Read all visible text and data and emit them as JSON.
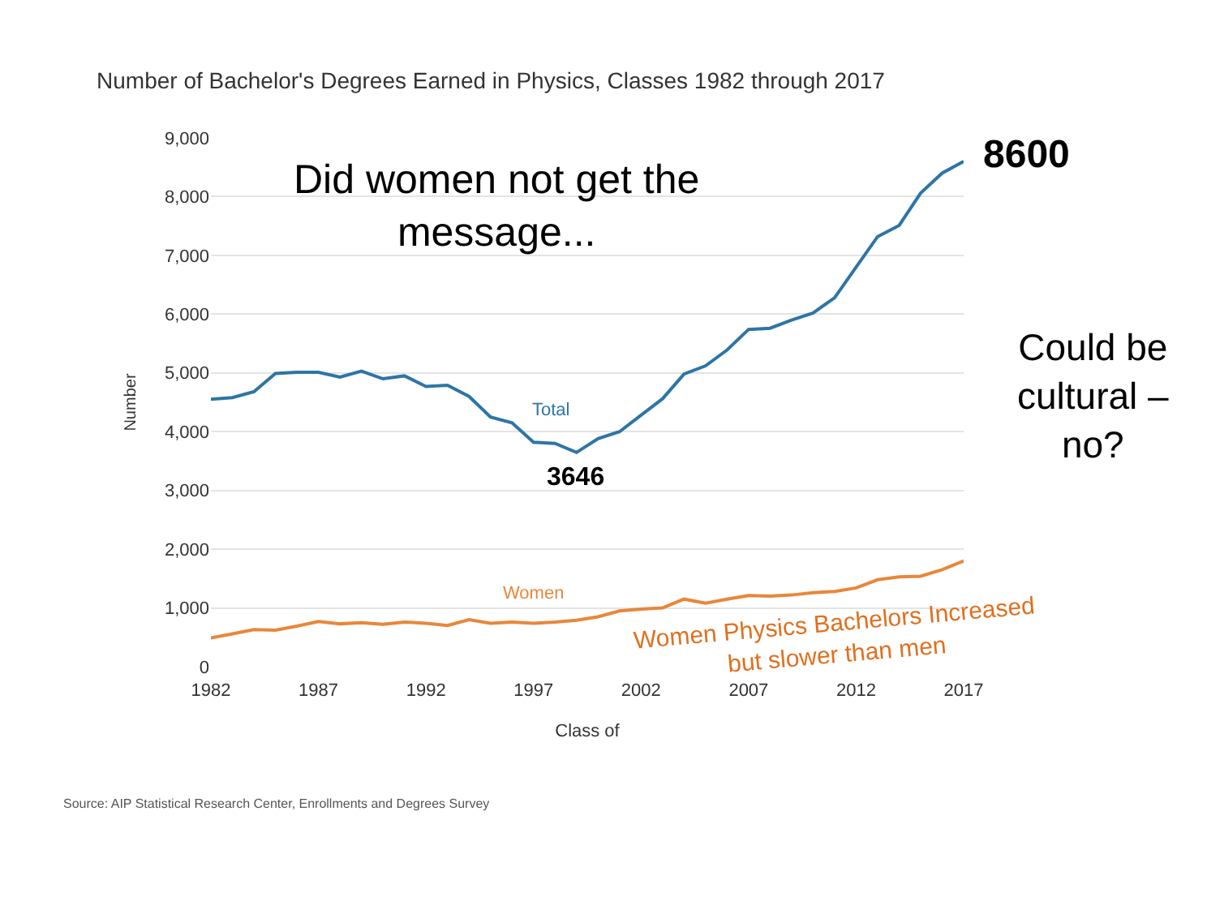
{
  "chart_data": {
    "type": "line",
    "title": "Number of Bachelor's Degrees Earned in Physics, Classes 1982 through 2017",
    "xlabel": "Class of",
    "ylabel": "Number",
    "x": [
      1982,
      1983,
      1984,
      1985,
      1986,
      1987,
      1988,
      1989,
      1990,
      1991,
      1992,
      1993,
      1994,
      1995,
      1996,
      1997,
      1998,
      1999,
      2000,
      2001,
      2002,
      2003,
      2004,
      2005,
      2006,
      2007,
      2008,
      2009,
      2010,
      2011,
      2012,
      2013,
      2014,
      2015,
      2016,
      2017
    ],
    "series": [
      {
        "name": "Total",
        "color": "#2e75a6",
        "values": [
          4550,
          4580,
          4680,
          4990,
          5010,
          5010,
          4930,
          5030,
          4900,
          4950,
          4770,
          4790,
          4600,
          4250,
          4150,
          3820,
          3800,
          3646,
          3880,
          4000,
          4280,
          4560,
          4980,
          5120,
          5390,
          5740,
          5760,
          5900,
          6020,
          6280,
          6800,
          7320,
          7510,
          8060,
          8400,
          8600
        ]
      },
      {
        "name": "Women",
        "color": "#e8873a",
        "values": [
          490,
          560,
          630,
          620,
          690,
          770,
          730,
          750,
          720,
          760,
          740,
          700,
          800,
          740,
          760,
          740,
          760,
          790,
          850,
          950,
          980,
          1000,
          1150,
          1080,
          1150,
          1210,
          1200,
          1220,
          1260,
          1280,
          1340,
          1480,
          1530,
          1540,
          1650,
          1800
        ]
      }
    ],
    "xlim": [
      1982,
      2017
    ],
    "xticks": [
      1982,
      1987,
      1992,
      1997,
      2002,
      2007,
      2012,
      2017
    ],
    "ylim": [
      0,
      9000
    ],
    "yticks": [
      {
        "value": 0,
        "label": "0"
      },
      {
        "value": 1000,
        "label": "1,000"
      },
      {
        "value": 2000,
        "label": "2,000"
      },
      {
        "value": 3000,
        "label": "3,000"
      },
      {
        "value": 4000,
        "label": "4,000"
      },
      {
        "value": 5000,
        "label": "5,000"
      },
      {
        "value": 6000,
        "label": "6,000"
      },
      {
        "value": 7000,
        "label": "7,000"
      },
      {
        "value": 8000,
        "label": "8,000"
      },
      {
        "value": 9000,
        "label": "9,000"
      }
    ],
    "grid": "y",
    "legend": false,
    "marker": "none",
    "line_style": "solid",
    "annotations": [
      "Did women not get the\nmessage...",
      "Could be\ncultural –\nno?",
      {
        "text": "3646",
        "x": 1999,
        "y": 3646
      },
      {
        "text": "8600",
        "x": 2017,
        "y": 8600
      },
      "Women Physics Bachelors Increased\nbut slower than men",
      "Source: AIP Statistical Research Center, Enrollments and Degrees Survey"
    ]
  }
}
